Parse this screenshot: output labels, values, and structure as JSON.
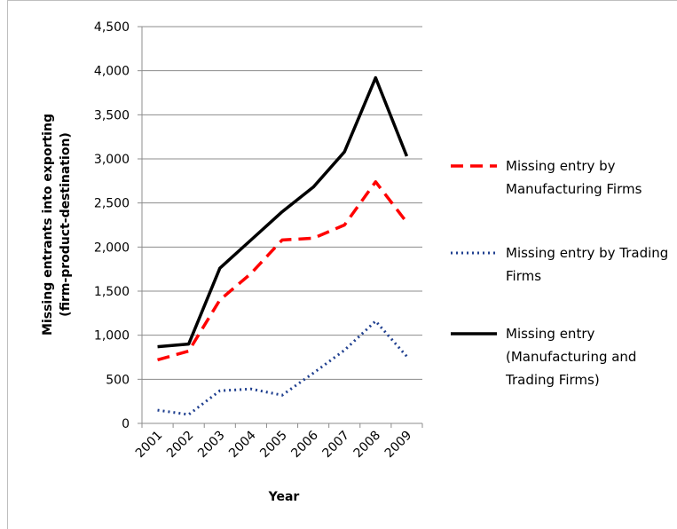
{
  "chart_data": {
    "type": "line",
    "xlabel": "Year",
    "ylabel": [
      "Missing entrants into exporting",
      "(firm-product-destination)"
    ],
    "categories": [
      "2001",
      "2002",
      "2003",
      "2004",
      "2005",
      "2006",
      "2007",
      "2008",
      "2009"
    ],
    "series": [
      {
        "name": "Missing entry by Manufacturing Firms",
        "color": "#ff0000",
        "style": "dashed",
        "values": [
          720,
          820,
          1400,
          1700,
          2080,
          2100,
          2250,
          2740,
          2280
        ]
      },
      {
        "name": "Missing entry by Trading Firms",
        "color": "#1f3f8f",
        "style": "dotted",
        "values": [
          150,
          100,
          370,
          390,
          320,
          570,
          830,
          1160,
          760
        ]
      },
      {
        "name": "Missing entry (Manufacturing and Trading Firms)",
        "color": "#000000",
        "style": "solid",
        "values": [
          870,
          900,
          1760,
          2080,
          2400,
          2680,
          3080,
          3920,
          3030
        ]
      }
    ],
    "ylim": [
      0,
      4500
    ],
    "yticks": [
      0,
      500,
      {
        "value": 1000,
        "label": "1,000"
      },
      {
        "value": 1500,
        "label": "1,500"
      },
      {
        "value": 2000,
        "label": "2,000"
      },
      {
        "value": 2500,
        "label": "2,500"
      },
      {
        "value": 3000,
        "label": "3,000"
      },
      {
        "value": 3500,
        "label": "3,500"
      },
      {
        "value": 4000,
        "label": "4,000"
      },
      {
        "value": 4500,
        "label": "4,500"
      }
    ],
    "grid": true,
    "legend": "right"
  }
}
